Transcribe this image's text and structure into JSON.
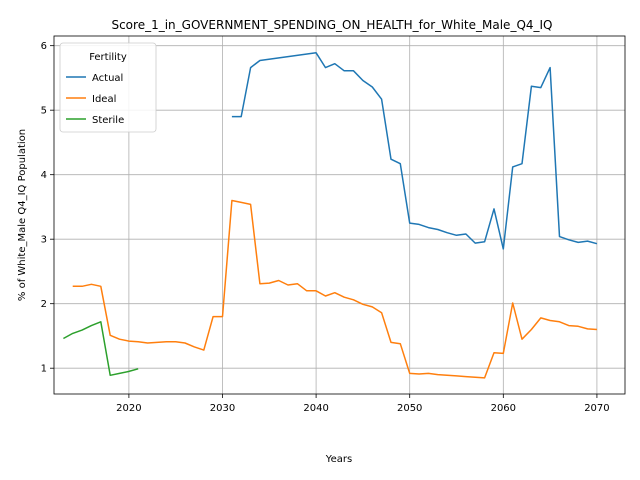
{
  "chart_data": {
    "type": "line",
    "title": "Score_1_in_GOVERNMENT_SPENDING_ON_HEALTH_for_White_Male_Q4_IQ",
    "xlabel": "Years",
    "ylabel": "% of White_Male Q4_IQ Population",
    "xlim": [
      2012,
      2073
    ],
    "ylim": [
      0.6,
      6.15
    ],
    "xticks": [
      2020,
      2030,
      2040,
      2050,
      2060,
      2070
    ],
    "yticks": [
      1,
      2,
      3,
      4,
      5,
      6
    ],
    "grid": true,
    "legend": {
      "title": "Fertility",
      "placement": "top-left"
    },
    "series": [
      {
        "name": "Actual",
        "color": "#1f77b4",
        "x": [
          2031,
          2032,
          2033,
          2034,
          2040,
          2041,
          2042,
          2043,
          2044,
          2045,
          2046,
          2047,
          2048,
          2049,
          2050,
          2051,
          2052,
          2053,
          2054,
          2055,
          2056,
          2057,
          2058,
          2059,
          2060,
          2061,
          2062,
          2063,
          2064,
          2065,
          2066,
          2067,
          2068,
          2069,
          2070
        ],
        "values": [
          4.9,
          4.9,
          5.66,
          5.77,
          5.89,
          5.66,
          5.72,
          5.61,
          5.61,
          5.46,
          5.36,
          5.17,
          4.24,
          4.17,
          3.25,
          3.23,
          3.18,
          3.15,
          3.1,
          3.06,
          3.08,
          2.94,
          2.96,
          3.47,
          2.85,
          4.12,
          4.17,
          5.37,
          5.35,
          5.66,
          3.04,
          2.99,
          2.95,
          2.97,
          2.93
        ]
      },
      {
        "name": "Ideal",
        "color": "#ff7f0e",
        "x": [
          2014,
          2015,
          2016,
          2017,
          2018,
          2019,
          2020,
          2021,
          2022,
          2023,
          2024,
          2025,
          2026,
          2027,
          2028,
          2029,
          2030,
          2031,
          2032,
          2033,
          2034,
          2035,
          2036,
          2037,
          2038,
          2039,
          2040,
          2041,
          2042,
          2043,
          2044,
          2045,
          2046,
          2047,
          2048,
          2049,
          2050,
          2051,
          2052,
          2053,
          2054,
          2055,
          2056,
          2057,
          2058,
          2059,
          2060,
          2061,
          2062,
          2063,
          2064,
          2065,
          2066,
          2067,
          2068,
          2069,
          2070
        ],
        "values": [
          2.27,
          2.27,
          2.3,
          2.27,
          1.51,
          1.45,
          1.42,
          1.41,
          1.39,
          1.4,
          1.41,
          1.41,
          1.39,
          1.33,
          1.28,
          1.8,
          1.8,
          3.6,
          3.57,
          3.54,
          2.31,
          2.32,
          2.36,
          2.29,
          2.31,
          2.2,
          2.2,
          2.12,
          2.17,
          2.1,
          2.06,
          1.99,
          1.95,
          1.86,
          1.4,
          1.38,
          0.92,
          0.91,
          0.92,
          0.9,
          0.89,
          0.88,
          0.87,
          0.86,
          0.85,
          1.24,
          1.23,
          2.01,
          1.45,
          1.6,
          1.78,
          1.74,
          1.72,
          1.66,
          1.65,
          1.61,
          1.6
        ]
      },
      {
        "name": "Sterile",
        "color": "#2ca02c",
        "x": [
          2013,
          2014,
          2015,
          2016,
          2017,
          2018,
          2019,
          2020,
          2021
        ],
        "values": [
          1.46,
          1.54,
          1.59,
          1.66,
          1.72,
          0.89,
          0.92,
          0.95,
          0.99
        ]
      }
    ]
  }
}
